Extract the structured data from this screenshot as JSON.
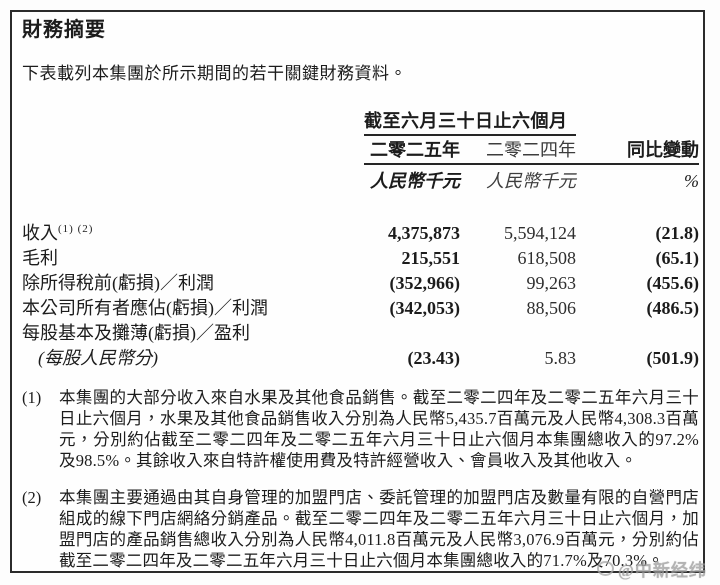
{
  "page": {
    "title": "財務摘要",
    "intro": "下表載列本集團於所示期間的若干關鍵財務資料。"
  },
  "table": {
    "period_header": "截至六月三十日止六個月",
    "col_2025": {
      "year": "二零二五年",
      "unit": "人民幣千元"
    },
    "col_2024": {
      "year": "二零二四年",
      "unit": "人民幣千元"
    },
    "col_change": {
      "year": "同比變動",
      "unit": "%"
    },
    "rows": [
      {
        "label": "收入",
        "sup": "(1) (2)",
        "v2025": "4,375,873",
        "v2024": "5,594,124",
        "change": "(21.8)"
      },
      {
        "label": "毛利",
        "v2025": "215,551",
        "v2024": "618,508",
        "change": "(65.1)"
      },
      {
        "label": "除所得稅前(虧損)／利潤",
        "v2025": "(352,966)",
        "v2024": "99,263",
        "change": "(455.6)"
      },
      {
        "label": "本公司所有者應佔(虧損)／利潤",
        "v2025": "(342,053)",
        "v2024": "88,506",
        "change": "(486.5)"
      },
      {
        "label": "每股基本及攤薄(虧損)／盈利"
      },
      {
        "sublabel": "(每股人民幣分)",
        "v2025": "(23.43)",
        "v2024": "5.83",
        "change": "(501.9)"
      }
    ]
  },
  "footnotes": [
    {
      "num": "(1)",
      "text": "本集團的大部分收入來自水果及其他食品銷售。截至二零二四年及二零二五年六月三十日止六個月，水果及其他食品銷售收入分別為人民幣5,435.7百萬元及人民幣4,308.3百萬元，分別約佔截至二零二四年及二零二五年六月三十日止六個月本集團總收入的97.2%及98.5%。其餘收入來自特許權使用費及特許經營收入、會員收入及其他收入。"
    },
    {
      "num": "(2)",
      "text": "本集團主要通過由其自身管理的加盟門店、委託管理的加盟門店及數量有限的自營門店組成的線下門店網絡分銷產品。截至二零二四年及二零二五年六月三十日止六個月，加盟門店的產品銷售總收入分別為人民幣4,011.8百萬元及人民幣3,076.9百萬元，分別約佔截至二零二四年及二零二五年六月三十日止六個月本集團總收入的71.7%及70.3%。"
    }
  ],
  "watermark": {
    "text": "@中新经纬"
  },
  "colors": {
    "ink": "#1c1c1c",
    "border": "#2b2b2b",
    "watermark": "#9a9a9a"
  }
}
